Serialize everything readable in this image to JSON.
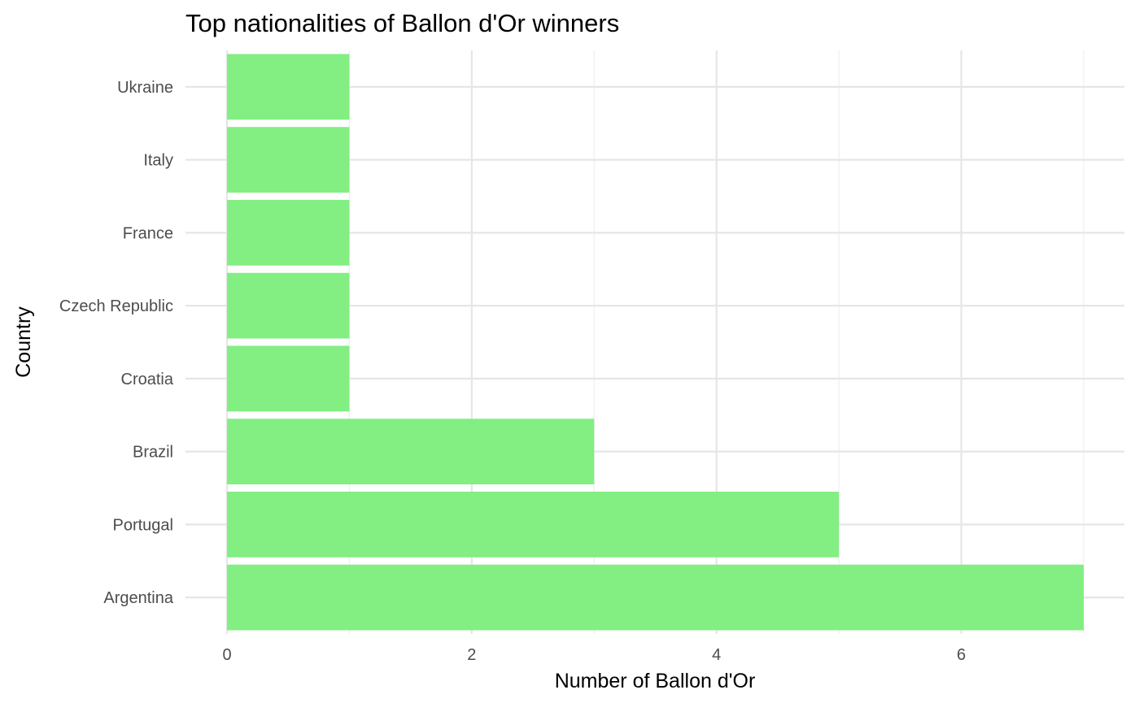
{
  "chart_data": {
    "type": "bar",
    "orientation": "horizontal",
    "title": "Top nationalities of Ballon d'Or winners",
    "xlabel": "Number of Ballon d'Or",
    "ylabel": "Country",
    "categories": [
      "Argentina",
      "Portugal",
      "Brazil",
      "Croatia",
      "Czech Republic",
      "France",
      "Italy",
      "Ukraine"
    ],
    "values": [
      7,
      5,
      3,
      1,
      1,
      1,
      1,
      1
    ],
    "xlim": [
      0,
      7
    ],
    "x_ticks": [
      0,
      2,
      4,
      6
    ],
    "grid": true,
    "bar_color": "#83ee82"
  }
}
